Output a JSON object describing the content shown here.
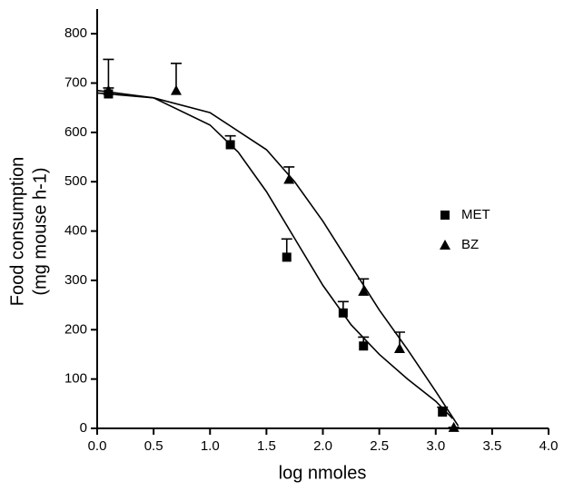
{
  "chart_data": {
    "type": "scatter",
    "xlabel": "log nmoles",
    "ylabel": [
      "Food consumption",
      "(mg mouse h-1)"
    ],
    "xlim": [
      0,
      4.0
    ],
    "ylim": [
      0,
      850
    ],
    "xticks": [
      {
        "value": 0,
        "label": "0.0"
      },
      0.5,
      {
        "value": 1,
        "label": "1.0"
      },
      1.5,
      {
        "value": 2,
        "label": "2.0"
      },
      2.5,
      {
        "value": 3,
        "label": "3.0"
      },
      3.5,
      {
        "value": 4,
        "label": "4.0"
      }
    ],
    "yticks": [
      0,
      100,
      200,
      300,
      400,
      500,
      600,
      700,
      800
    ],
    "legend": "right",
    "series": [
      {
        "name": "MET",
        "marker": "square",
        "color": "#000000",
        "x": [
          0.1,
          1.18,
          1.68,
          2.18,
          2.36,
          3.06
        ],
        "values": [
          678,
          575,
          347,
          234,
          167,
          33
        ],
        "errors": [
          12,
          18,
          37,
          23,
          18,
          10
        ]
      },
      {
        "name": "BZ",
        "marker": "triangle",
        "color": "#000000",
        "x": [
          0.1,
          0.7,
          1.7,
          2.36,
          2.68,
          3.16
        ],
        "values": [
          685,
          685,
          505,
          278,
          162,
          2
        ],
        "errors": [
          63,
          55,
          25,
          25,
          33,
          0
        ]
      }
    ],
    "curves": [
      {
        "color": "#000000",
        "x": [
          0,
          0.5,
          1.0,
          1.25,
          1.5,
          1.75,
          2.0,
          2.25,
          2.5,
          2.75,
          3.0,
          3.15
        ],
        "values": [
          685,
          670,
          615,
          560,
          480,
          385,
          290,
          210,
          150,
          100,
          55,
          20
        ]
      },
      {
        "color": "#000000",
        "x": [
          0,
          0.5,
          1.0,
          1.5,
          1.75,
          2.0,
          2.25,
          2.5,
          2.75,
          3.0,
          3.1,
          3.2
        ],
        "values": [
          680,
          670,
          640,
          565,
          500,
          420,
          330,
          240,
          160,
          75,
          40,
          5
        ]
      }
    ]
  }
}
